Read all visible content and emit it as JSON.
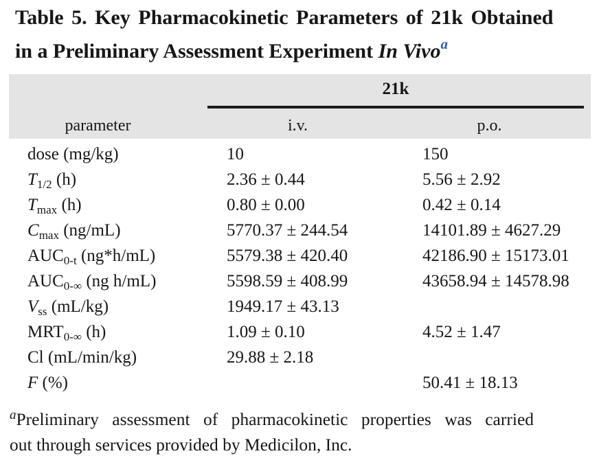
{
  "page": {
    "background_color": "#ffffff",
    "text_color": "#161616",
    "header_band_color": "#e4e4e4",
    "accent_blue": "#2e5cb8"
  },
  "title": {
    "line1": "Table 5. Key Pharmacokinetic Parameters of 21k Obtained",
    "line2_regular": "in a Preliminary Assessment Experiment",
    "line2_italic": "In Vivo",
    "superscript": "a"
  },
  "table": {
    "compound_label": "21k",
    "columns": {
      "parameter": "parameter",
      "iv": "i.v.",
      "po": "p.o."
    },
    "rows": [
      {
        "label_main": "dose",
        "italic": false,
        "label_sub": "",
        "label_unit": "(mg/kg)",
        "iv": "10",
        "po": "150"
      },
      {
        "label_main": "T",
        "italic": true,
        "label_sub": "1/2",
        "label_unit": "(h)",
        "iv": "2.36 ± 0.44",
        "po": "5.56 ± 2.92"
      },
      {
        "label_main": "T",
        "italic": true,
        "label_sub": "max",
        "label_unit": "(h)",
        "iv": "0.80 ± 0.00",
        "po": "0.42 ± 0.14"
      },
      {
        "label_main": "C",
        "italic": true,
        "label_sub": "max",
        "label_unit": "(ng/mL)",
        "iv": "5770.37 ± 244.54",
        "po": "14101.89 ± 4627.29"
      },
      {
        "label_main": "AUC",
        "italic": false,
        "label_sub": "0-t",
        "label_unit": "(ng*h/mL)",
        "iv": "5579.38 ± 420.40",
        "po": "42186.90 ± 15173.01"
      },
      {
        "label_main": "AUC",
        "italic": false,
        "label_sub": "0-∞",
        "label_unit": "(ng h/mL)",
        "iv": "5598.59 ± 408.99",
        "po": "43658.94 ± 14578.98"
      },
      {
        "label_main": "V",
        "italic": true,
        "label_sub": "ss",
        "label_unit": "(mL/kg)",
        "iv": "1949.17 ± 43.13",
        "po": ""
      },
      {
        "label_main": "MRT",
        "italic": false,
        "label_sub": "0-∞",
        "label_unit": "(h)",
        "iv": "1.09 ± 0.10",
        "po": "4.52 ± 1.47"
      },
      {
        "label_main": "Cl",
        "italic": false,
        "label_sub": "",
        "label_unit": "(mL/min/kg)",
        "iv": "29.88 ± 2.18",
        "po": ""
      },
      {
        "label_main": "F",
        "italic": true,
        "label_sub": "",
        "label_unit": "(%)",
        "iv": "",
        "po": "50.41 ± 18.13"
      }
    ]
  },
  "footnote": {
    "marker": "a",
    "line1": "Preliminary assessment of pharmacokinetic properties was carried",
    "line2": "out through services provided by Medicilon, Inc."
  }
}
